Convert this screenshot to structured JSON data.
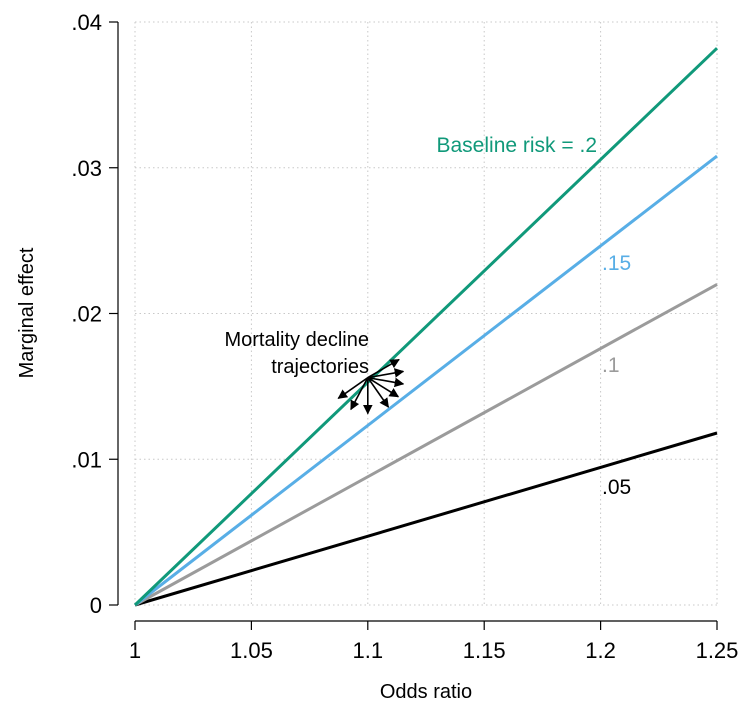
{
  "chart_data": {
    "type": "line",
    "title": "",
    "xlabel": "Odds ratio",
    "ylabel": "Marginal effect",
    "xlim": [
      1,
      1.25
    ],
    "ylim": [
      0,
      0.04
    ],
    "x_ticks": [
      1,
      1.05,
      1.1,
      1.15,
      1.2,
      1.25
    ],
    "x_tick_labels": [
      "1",
      "1.05",
      "1.1",
      "1.15",
      "1.2",
      "1.25"
    ],
    "y_ticks": [
      0,
      0.01,
      0.02,
      0.03,
      0.04
    ],
    "y_tick_labels": [
      "0",
      ".01",
      ".02",
      ".03",
      ".04"
    ],
    "grid": true,
    "legend": "none",
    "series": [
      {
        "name": ".05",
        "color": "#000000",
        "x": [
          1,
          1.25
        ],
        "y": [
          0,
          0.0118
        ]
      },
      {
        "name": ".1",
        "color": "#9b9b9b",
        "x": [
          1,
          1.25
        ],
        "y": [
          0,
          0.022
        ]
      },
      {
        "name": ".15",
        "color": "#58aee6",
        "x": [
          1,
          1.25
        ],
        "y": [
          0,
          0.0308
        ]
      },
      {
        "name": "Baseline risk = .2",
        "color": "#10997a",
        "x": [
          1,
          1.25
        ],
        "y": [
          0,
          0.0382
        ]
      }
    ],
    "annotations": [
      {
        "text": "Mortality decline",
        "x": 1.1,
        "y": 0.0156
      },
      {
        "text": "trajectories",
        "x": 1.1,
        "y": 0.0156
      }
    ]
  }
}
